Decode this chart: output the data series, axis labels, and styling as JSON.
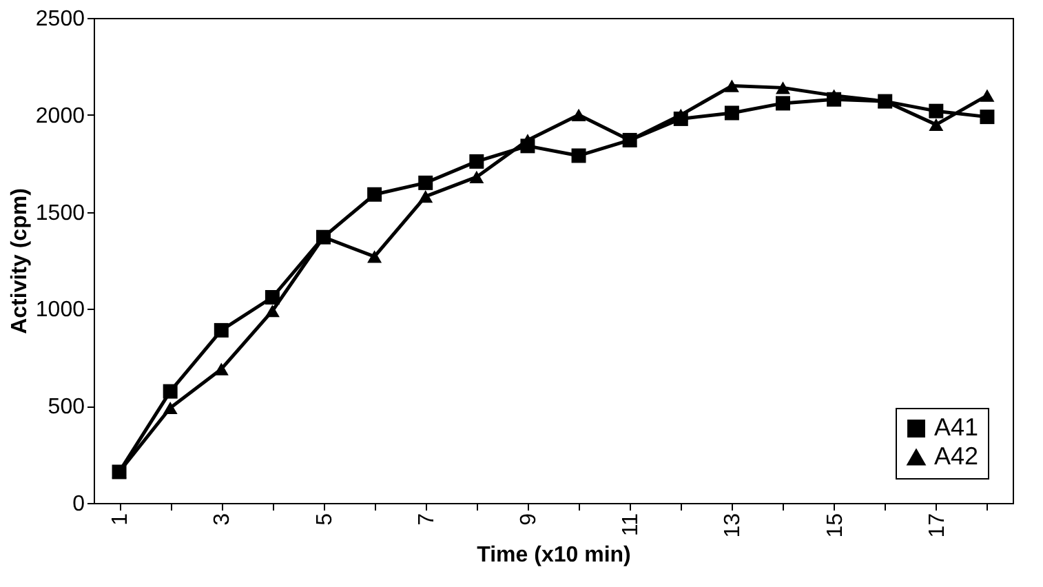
{
  "chart_data": {
    "type": "line",
    "xlabel": "Time (x10 min)",
    "ylabel": "Activity (cpm)",
    "categories": [
      "1",
      null,
      "3",
      null,
      "5",
      null,
      "7",
      null,
      "9",
      null,
      "11",
      null,
      "13",
      null,
      "15",
      null,
      "17",
      null
    ],
    "series": [
      {
        "name": "A41",
        "color": "#000000",
        "marker": "square",
        "values": [
          160,
          575,
          890,
          1060,
          1370,
          1590,
          1650,
          1760,
          1840,
          1790,
          1870,
          1980,
          2010,
          2060,
          2080,
          2070,
          2020,
          1990
        ]
      },
      {
        "name": "A42",
        "color": "#000000",
        "marker": "triangle",
        "values": [
          160,
          490,
          690,
          990,
          1370,
          1270,
          1580,
          1680,
          1870,
          2000,
          1870,
          2000,
          2150,
          2140,
          2100,
          2070,
          1950,
          2100
        ]
      }
    ],
    "ylim": [
      0,
      2500
    ],
    "yticks": [
      0,
      500,
      1000,
      1500,
      2000,
      2500
    ],
    "grid": false,
    "legend": "bottom right",
    "line_style": "solid"
  }
}
